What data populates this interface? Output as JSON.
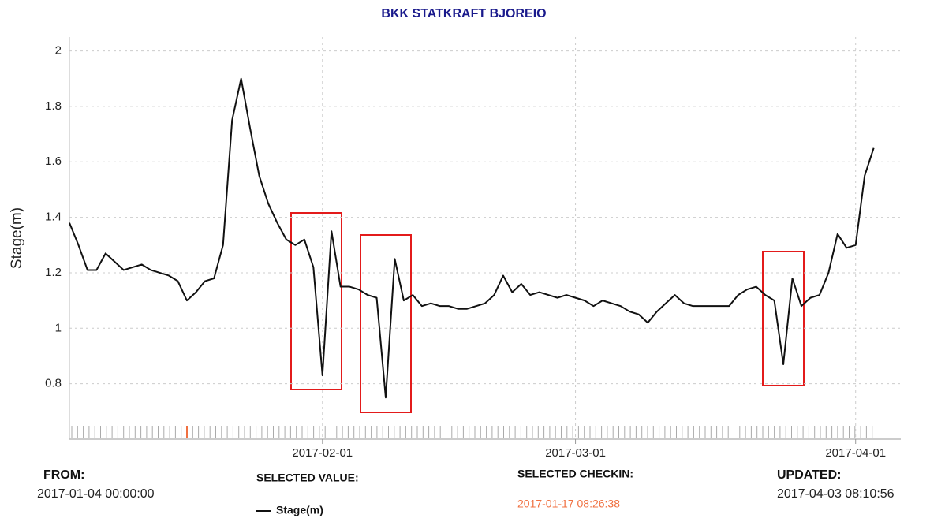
{
  "chart_data": {
    "type": "line",
    "title": "BKK STATKRAFT BJOREIO",
    "ylabel": "Stage(m)",
    "x": [
      "2017-01-04",
      "2017-01-05",
      "2017-01-06",
      "2017-01-07",
      "2017-01-08",
      "2017-01-09",
      "2017-01-10",
      "2017-01-11",
      "2017-01-12",
      "2017-01-13",
      "2017-01-14",
      "2017-01-15",
      "2017-01-16",
      "2017-01-17",
      "2017-01-18",
      "2017-01-19",
      "2017-01-20",
      "2017-01-21",
      "2017-01-22",
      "2017-01-23",
      "2017-01-24",
      "2017-01-25",
      "2017-01-26",
      "2017-01-27",
      "2017-01-28",
      "2017-01-29",
      "2017-01-30",
      "2017-01-31",
      "2017-02-01",
      "2017-02-02",
      "2017-02-03",
      "2017-02-04",
      "2017-02-05",
      "2017-02-06",
      "2017-02-07",
      "2017-02-08",
      "2017-02-09",
      "2017-02-10",
      "2017-02-11",
      "2017-02-12",
      "2017-02-13",
      "2017-02-14",
      "2017-02-15",
      "2017-02-16",
      "2017-02-17",
      "2017-02-18",
      "2017-02-19",
      "2017-02-20",
      "2017-02-21",
      "2017-02-22",
      "2017-02-23",
      "2017-02-24",
      "2017-02-25",
      "2017-02-26",
      "2017-02-27",
      "2017-02-28",
      "2017-03-01",
      "2017-03-02",
      "2017-03-03",
      "2017-03-04",
      "2017-03-05",
      "2017-03-06",
      "2017-03-07",
      "2017-03-08",
      "2017-03-09",
      "2017-03-10",
      "2017-03-11",
      "2017-03-12",
      "2017-03-13",
      "2017-03-14",
      "2017-03-15",
      "2017-03-16",
      "2017-03-17",
      "2017-03-18",
      "2017-03-19",
      "2017-03-20",
      "2017-03-21",
      "2017-03-22",
      "2017-03-23",
      "2017-03-24",
      "2017-03-25",
      "2017-03-26",
      "2017-03-27",
      "2017-03-28",
      "2017-03-29",
      "2017-03-30",
      "2017-03-31",
      "2017-04-01",
      "2017-04-02",
      "2017-04-03"
    ],
    "series": [
      {
        "name": "Stage(m)",
        "color": "#111111",
        "values": [
          1.38,
          1.3,
          1.21,
          1.21,
          1.27,
          1.24,
          1.21,
          1.22,
          1.23,
          1.21,
          1.2,
          1.19,
          1.17,
          1.1,
          1.13,
          1.17,
          1.18,
          1.3,
          1.75,
          1.9,
          1.72,
          1.55,
          1.45,
          1.38,
          1.32,
          1.3,
          1.32,
          1.22,
          0.83,
          1.35,
          1.15,
          1.15,
          1.14,
          1.12,
          1.11,
          0.75,
          1.25,
          1.1,
          1.12,
          1.08,
          1.09,
          1.08,
          1.08,
          1.07,
          1.07,
          1.08,
          1.09,
          1.12,
          1.19,
          1.13,
          1.16,
          1.12,
          1.13,
          1.12,
          1.11,
          1.12,
          1.11,
          1.1,
          1.08,
          1.1,
          1.09,
          1.08,
          1.06,
          1.05,
          1.02,
          1.06,
          1.09,
          1.12,
          1.09,
          1.08,
          1.08,
          1.08,
          1.08,
          1.08,
          1.12,
          1.14,
          1.15,
          1.12,
          1.1,
          0.87,
          1.18,
          1.08,
          1.11,
          1.12,
          1.2,
          1.34,
          1.29,
          1.3,
          1.55,
          1.65
        ]
      }
    ],
    "xlim": [
      "2017-01-04",
      "2017-04-06"
    ],
    "xticks": [
      "2017-02-01",
      "2017-03-01",
      "2017-04-01"
    ],
    "ylim": [
      0.6,
      2.05
    ],
    "yticks": [
      0.8,
      1,
      1.2,
      1.4,
      1.6,
      1.8,
      2
    ],
    "grid": true
  },
  "footer": {
    "from_label": "FROM:",
    "from_value": "2017-01-04 00:00:00",
    "selected_value_label": "SELECTED VALUE:",
    "selected_checkin_label": "SELECTED CHECKIN:",
    "selected_checkin_value": "2017-01-17 08:26:38",
    "updated_label": "UPDATED:",
    "updated_value": "2017-04-03 08:10:56"
  }
}
